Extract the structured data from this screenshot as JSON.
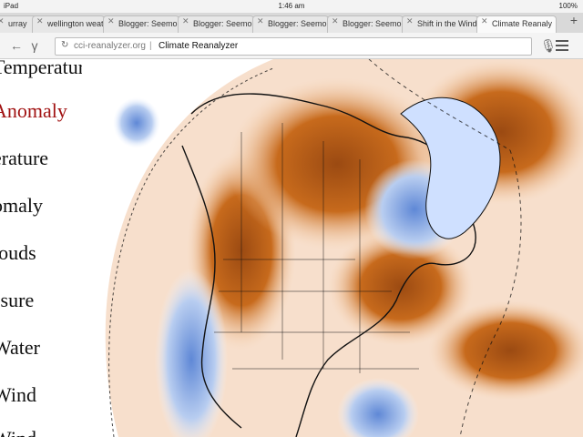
{
  "status_bar": {
    "device": "iPad",
    "time": "1:46 am",
    "battery": "100%"
  },
  "tabs": [
    {
      "label": "urray"
    },
    {
      "label": "wellington weat"
    },
    {
      "label": "Blogger: Seemo"
    },
    {
      "label": "Blogger: Seemo"
    },
    {
      "label": "Blogger: Seemo"
    },
    {
      "label": "Blogger: Seemo"
    },
    {
      "label": "Shift in the Wind"
    },
    {
      "label": "Climate Reanaly"
    }
  ],
  "toolbar": {
    "url_domain": "cci-reanalyzer.org",
    "page_title": "Climate Reanalyzer"
  },
  "side_menu": [
    {
      "label": "Temperature"
    },
    {
      "label": "Anomaly"
    },
    {
      "label": "erature"
    },
    {
      "label": "omaly"
    },
    {
      "label": "louds"
    },
    {
      "label": "ssure"
    },
    {
      "label": "Water"
    },
    {
      "label": "Wind"
    },
    {
      "label": "Wind"
    }
  ],
  "colors": {
    "selected_menu": "#a11212",
    "warm_anomaly": "#c76a1c",
    "cool_anomaly": "#5f88d6"
  }
}
